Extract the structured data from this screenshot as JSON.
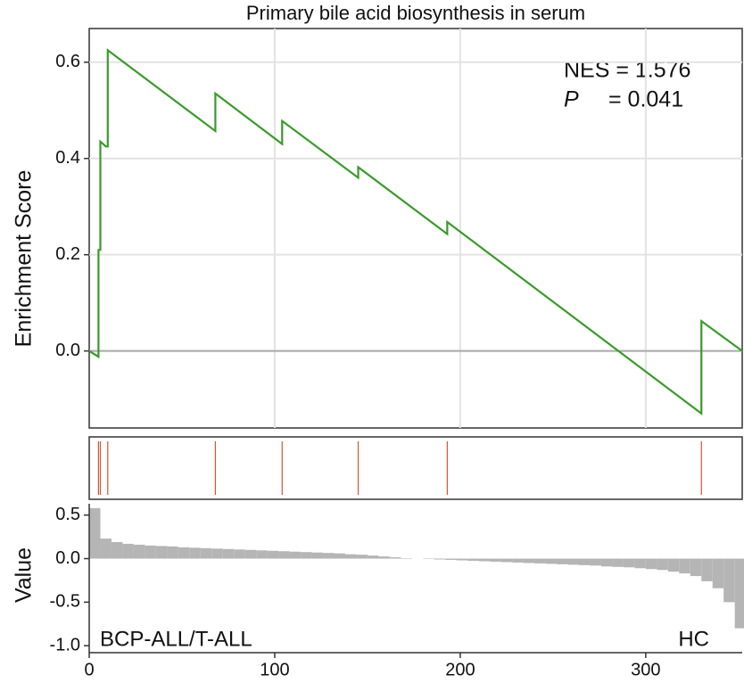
{
  "chart_data": [
    {
      "type": "line",
      "title": "Primary bile acid biosynthesis in serum",
      "ylabel": "Enrichment Score",
      "annotations": [
        "NES = 1.576",
        "P",
        "= 0.041"
      ],
      "x": [
        0,
        5,
        5,
        6,
        6,
        9,
        10,
        10,
        68,
        68,
        104,
        104,
        145,
        145,
        193,
        193,
        330,
        330,
        352
      ],
      "values": [
        0,
        -0.012,
        0.21,
        0.21,
        0.435,
        0.425,
        0.425,
        0.625,
        0.457,
        0.535,
        0.43,
        0.478,
        0.36,
        0.382,
        0.243,
        0.268,
        -0.13,
        0.062,
        0
      ],
      "color": "#3a9a2a",
      "xlim": [
        0,
        352
      ],
      "ylim": [
        -0.16,
        0.67
      ],
      "xticks": [
        100,
        200,
        300
      ],
      "yticks": [
        0.6,
        0.4,
        0.2,
        {
          "value": 0,
          "label": "0.0"
        }
      ],
      "grid": true
    },
    {
      "type": "rug",
      "hits": [
        5,
        6,
        10,
        68,
        104,
        145,
        193,
        330
      ],
      "color": "#d9542b",
      "xlim": [
        0,
        352
      ]
    },
    {
      "type": "bar",
      "ylabel": "Value",
      "labels": [
        "BCP-ALL/T-ALL",
        "HC"
      ],
      "x": [
        0,
        6,
        12,
        18,
        24,
        30,
        36,
        42,
        48,
        54,
        60,
        66,
        72,
        78,
        84,
        90,
        96,
        102,
        108,
        114,
        120,
        126,
        132,
        138,
        144,
        150,
        156,
        162,
        168,
        174,
        180,
        186,
        192,
        198,
        204,
        210,
        216,
        222,
        228,
        234,
        240,
        246,
        252,
        258,
        264,
        270,
        276,
        282,
        288,
        294,
        300,
        306,
        312,
        318,
        324,
        330,
        336,
        342,
        348
      ],
      "values": [
        0.58,
        0.23,
        0.19,
        0.17,
        0.16,
        0.15,
        0.145,
        0.14,
        0.13,
        0.125,
        0.12,
        0.115,
        0.11,
        0.105,
        0.1,
        0.095,
        0.09,
        0.085,
        0.08,
        0.075,
        0.07,
        0.065,
        0.06,
        0.05,
        0.045,
        0.035,
        0.025,
        0.015,
        0.005,
        0,
        -0.005,
        -0.01,
        -0.015,
        -0.02,
        -0.025,
        -0.03,
        -0.035,
        -0.04,
        -0.045,
        -0.05,
        -0.055,
        -0.06,
        -0.065,
        -0.07,
        -0.075,
        -0.08,
        -0.09,
        -0.095,
        -0.1,
        -0.11,
        -0.12,
        -0.13,
        -0.15,
        -0.17,
        -0.2,
        -0.26,
        -0.34,
        -0.5,
        -0.8
      ],
      "color": "#b5b5b5",
      "xlim": [
        0,
        352
      ],
      "ylim": [
        -1.08,
        0.63
      ],
      "xticks": [
        0,
        100,
        200,
        300
      ],
      "yticks": [
        0.5,
        {
          "value": 0,
          "label": "0.0"
        },
        -0.5,
        {
          "value": -1,
          "label": "-1.0"
        }
      ]
    }
  ]
}
